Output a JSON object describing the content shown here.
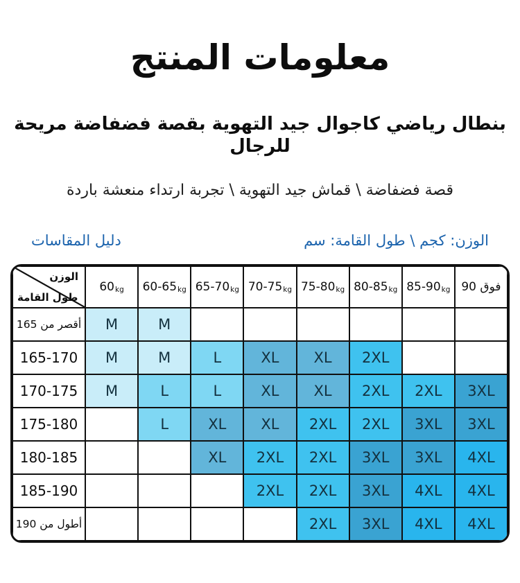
{
  "page": {
    "title": "معلومات المنتج",
    "subtitle": "بنطال رياضي كاجوال جيد التهوية بقصة فضفاضة مريحة للرجال",
    "features": "قصة فضفاضة \\ قماش جيد التهوية \\ تجربة ارتداء منعشة باردة",
    "size_guide_label": "دليل المقاسات",
    "units_label": "الوزن: كجم \\ طول القامة: سم",
    "accent_color": "#1b63ad"
  },
  "size_chart": {
    "corner": {
      "weight_label": "الوزن",
      "height_label": "طول القامة"
    },
    "columns": [
      {
        "value": "60",
        "unit": "kg"
      },
      {
        "value": "60-65",
        "unit": "kg"
      },
      {
        "value": "65-70",
        "unit": "kg"
      },
      {
        "value": "70-75",
        "unit": "kg"
      },
      {
        "value": "75-80",
        "unit": "kg"
      },
      {
        "value": "80-85",
        "unit": "kg"
      },
      {
        "value": "85-90",
        "unit": "kg"
      },
      {
        "value": "فوق 90",
        "unit": ""
      }
    ],
    "size_colors": {
      "M": "#c9edf9",
      "L": "#7fd7f3",
      "XL": "#62b5da",
      "2XL": "#3fc2ef",
      "3XL": "#3aa3d2",
      "4XL": "#29b5ed"
    },
    "rows": [
      {
        "label": "أقصر من 165",
        "cells": [
          "M",
          "M",
          "",
          "",
          "",
          "",
          "",
          ""
        ]
      },
      {
        "label": "165-170",
        "cells": [
          "M",
          "M",
          "L",
          "XL",
          "XL",
          "2XL",
          "",
          ""
        ]
      },
      {
        "label": "170-175",
        "cells": [
          "M",
          "L",
          "L",
          "XL",
          "XL",
          "2XL",
          "2XL",
          "3XL"
        ]
      },
      {
        "label": "175-180",
        "cells": [
          "",
          "L",
          "XL",
          "XL",
          "2XL",
          "2XL",
          "3XL",
          "3XL"
        ]
      },
      {
        "label": "180-185",
        "cells": [
          "",
          "",
          "XL",
          "2XL",
          "2XL",
          "3XL",
          "3XL",
          "4XL"
        ]
      },
      {
        "label": "185-190",
        "cells": [
          "",
          "",
          "",
          "2XL",
          "2XL",
          "3XL",
          "4XL",
          "4XL"
        ]
      },
      {
        "label": "أطول من 190",
        "cells": [
          "",
          "",
          "",
          "",
          "2XL",
          "3XL",
          "4XL",
          "4XL"
        ]
      }
    ]
  }
}
